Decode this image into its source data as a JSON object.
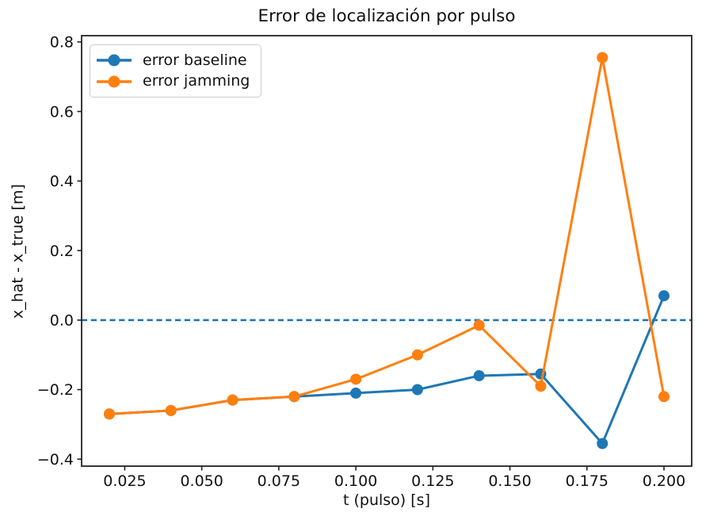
{
  "chart_data": {
    "type": "line",
    "title": "Error de localización por pulso",
    "xlabel": "t (pulso) [s]",
    "ylabel": "x_hat - x_true [m]",
    "x": [
      0.02,
      0.04,
      0.06,
      0.08,
      0.1,
      0.12,
      0.14,
      0.16,
      0.18,
      0.2
    ],
    "series": [
      {
        "name": "error baseline",
        "color": "#1f77b4",
        "marker": "circle",
        "values": [
          -0.27,
          -0.26,
          -0.23,
          -0.22,
          -0.21,
          -0.2,
          -0.16,
          -0.155,
          -0.355,
          0.07
        ]
      },
      {
        "name": "error jamming",
        "color": "#ff7f0e",
        "marker": "circle",
        "values": [
          -0.27,
          -0.26,
          -0.23,
          -0.22,
          -0.17,
          -0.1,
          -0.015,
          -0.19,
          0.755,
          -0.22
        ]
      }
    ],
    "zero_line": {
      "y": 0.0,
      "color": "#1f77b4",
      "linestyle": "dashed"
    },
    "xlim": [
      0.011,
      0.209
    ],
    "ylim": [
      -0.42,
      0.818
    ],
    "xticks": {
      "values": [
        0.025,
        0.05,
        0.075,
        0.1,
        0.125,
        0.15,
        0.175,
        0.2
      ],
      "labels": [
        "0.025",
        "0.050",
        "0.075",
        "0.100",
        "0.125",
        "0.150",
        "0.175",
        "0.200"
      ]
    },
    "yticks": {
      "values": [
        0.8,
        0.6,
        0.4,
        0.2,
        0.0,
        -0.2,
        -0.4
      ],
      "labels": [
        "0.8",
        "0.6",
        "0.4",
        "0.2",
        "0.0",
        "−0.2",
        "−0.4"
      ]
    },
    "legend": {
      "position": "upper left",
      "entries": [
        "error baseline",
        "error jamming"
      ]
    },
    "grid": false,
    "axis_color": "#222222",
    "text_color": "#111111"
  }
}
